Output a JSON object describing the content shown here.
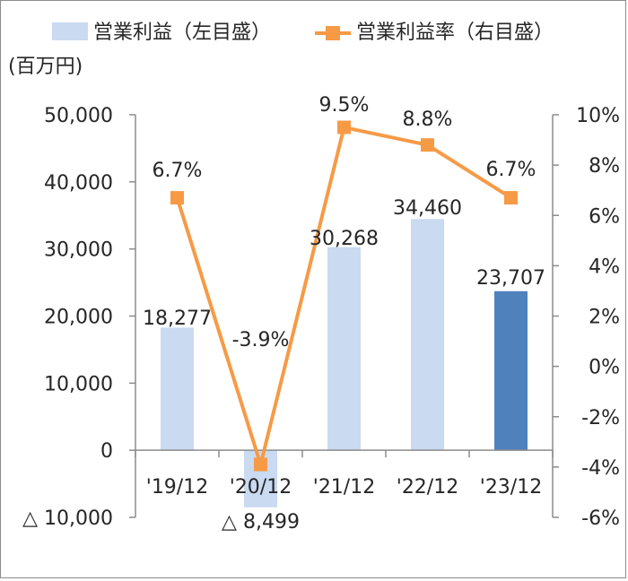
{
  "chart_data": {
    "type": "bar+line",
    "categories": [
      "'19/12",
      "'20/12",
      "'21/12",
      "'22/12",
      "'23/12"
    ],
    "unit_label": "(百万円)",
    "series": [
      {
        "name": "営業利益（左目盛）",
        "kind": "bar",
        "axis": "left",
        "values": [
          18277,
          -8499,
          30268,
          34460,
          23707
        ],
        "labels": [
          "18,277",
          "△ 8,499",
          "30,268",
          "34,460",
          "23,707"
        ]
      },
      {
        "name": "営業利益率（右目盛）",
        "kind": "line",
        "axis": "right",
        "values": [
          6.7,
          -3.9,
          9.5,
          8.8,
          6.7
        ],
        "labels": [
          "6.7%",
          "-3.9%",
          "9.5%",
          "8.8%",
          "6.7%"
        ]
      }
    ],
    "left_axis": {
      "ylim": [
        -10000,
        50000
      ],
      "ticks": [
        50000,
        40000,
        30000,
        20000,
        10000,
        0,
        -10000
      ],
      "tick_labels": [
        "50,000",
        "40,000",
        "30,000",
        "20,000",
        "10,000",
        "0",
        "△ 10,000"
      ]
    },
    "right_axis": {
      "ylim": [
        -6,
        10
      ],
      "ticks": [
        10,
        8,
        6,
        4,
        2,
        0,
        -2,
        -4,
        -6
      ],
      "tick_labels": [
        "10%",
        "8%",
        "6%",
        "4%",
        "2%",
        "0%",
        "-2%",
        "-4%",
        "-6%"
      ]
    },
    "legend_position": "top",
    "grid": false,
    "colors": {
      "bar_light": "#c9daf1",
      "bar_highlight": "#4f81bd",
      "line": "#f79a46",
      "axis": "#8c8c8c",
      "text": "#262626"
    }
  }
}
